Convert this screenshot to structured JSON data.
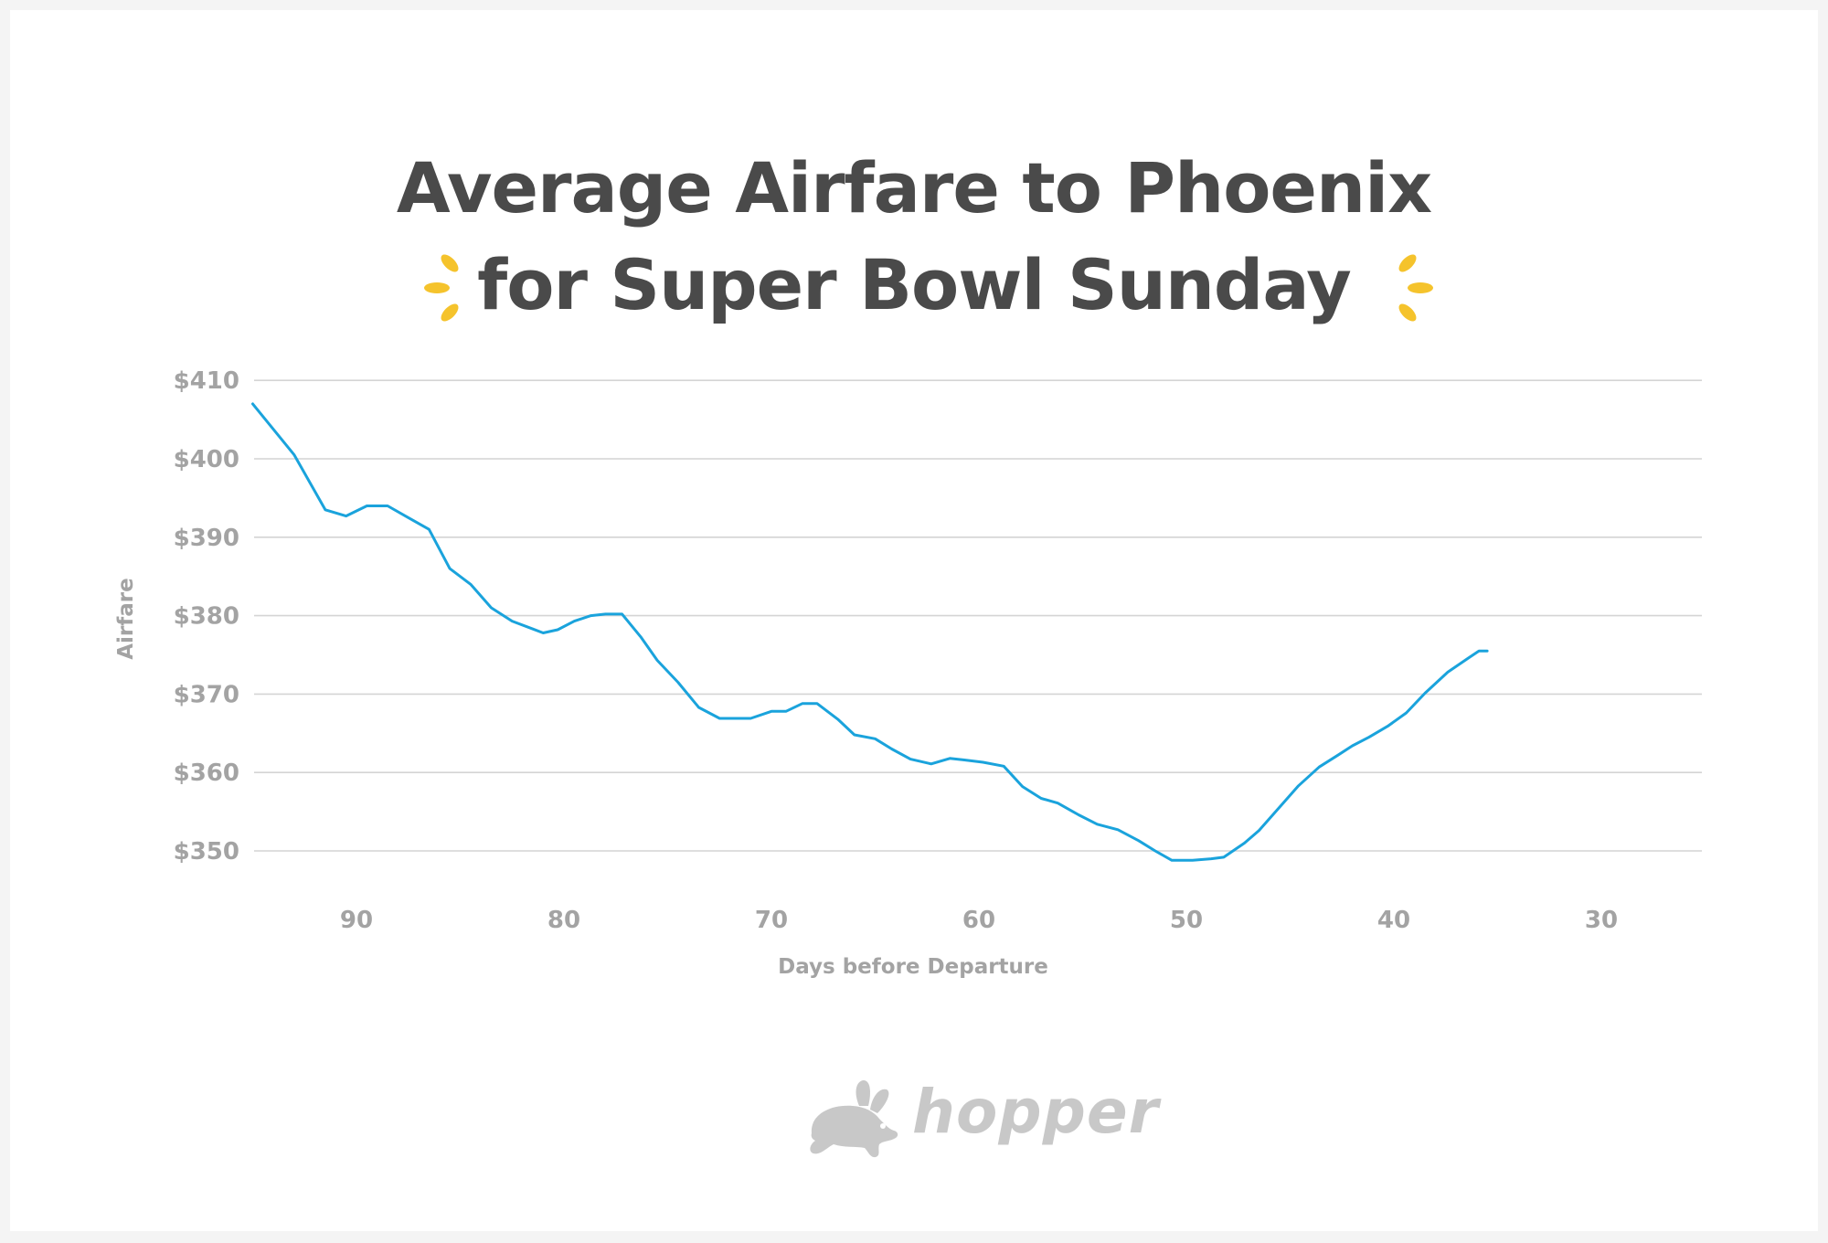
{
  "header": {
    "title_line1": "Average Airfare to Phoenix",
    "title_line2": "for Super Bowl Sunday",
    "sparkle_color": "#f5c32c"
  },
  "logo": {
    "text": "hopper",
    "icon": "rabbit-icon",
    "color": "#c8c8c8"
  },
  "chart_data": {
    "type": "line",
    "title": "Average Airfare to Phoenix for Super Bowl Sunday",
    "xlabel": "Days before Departure",
    "ylabel": "Airfare",
    "x_reversed": true,
    "xlim": [
      95,
      25
    ],
    "ylim": [
      345,
      412
    ],
    "xticks": [
      90,
      80,
      70,
      60,
      50,
      40,
      30
    ],
    "yticks": [
      350,
      360,
      370,
      380,
      390,
      400,
      410
    ],
    "ytick_labels": [
      "$350",
      "$360",
      "$370",
      "$380",
      "$390",
      "$400",
      "$410"
    ],
    "xtick_labels": [
      "90",
      "80",
      "70",
      "60",
      "50",
      "40",
      "30"
    ],
    "grid": "horizontal",
    "line_color": "#1aa3dc",
    "grid_color": "#d4d4d4",
    "series": [
      {
        "x": [
          95,
          93,
          91.5,
          90.5,
          89.5,
          88.5,
          87.5,
          86.5,
          85.5,
          84.5,
          83.5,
          82.5,
          81.5,
          81,
          80.3,
          79.5,
          78.7,
          78,
          77.2,
          76.3,
          75.5,
          74.5,
          73.5,
          72.5,
          71.8,
          71,
          70,
          69.3,
          68.5,
          67.8,
          66.8,
          66,
          65,
          64.2,
          63.3,
          62.3,
          61.4,
          60.7,
          59.8,
          58.8,
          57.9,
          57,
          56.2,
          55.2,
          54.3,
          53.3,
          52.3,
          51.5,
          50.7,
          49.7,
          48.8,
          48.2,
          47.2,
          46.5,
          45.6,
          44.6,
          43.6,
          42.7,
          42,
          41.2,
          40.3,
          39.4,
          38.5,
          37.4,
          36.4,
          35.9,
          35.5
        ],
        "y": [
          407,
          400.5,
          393.5,
          392.7,
          394,
          394,
          392.5,
          391,
          386,
          384,
          381,
          379.3,
          378.3,
          377.8,
          378.2,
          379.3,
          380.0,
          380.2,
          380.2,
          377.3,
          374.3,
          371.5,
          368.3,
          366.9,
          366.9,
          366.9,
          367.8,
          367.8,
          368.8,
          368.8,
          366.8,
          364.8,
          364.3,
          363.0,
          361.7,
          361.1,
          361.8,
          361.6,
          361.3,
          360.8,
          358.2,
          356.7,
          356.1,
          354.6,
          353.4,
          352.7,
          351.3,
          350.0,
          348.8,
          348.8,
          349.0,
          349.2,
          351.0,
          352.6,
          355.3,
          358.3,
          360.7,
          362.2,
          363.4,
          364.5,
          365.9,
          367.6,
          370.1,
          372.8,
          374.6,
          375.5,
          375.5
        ]
      }
    ]
  }
}
